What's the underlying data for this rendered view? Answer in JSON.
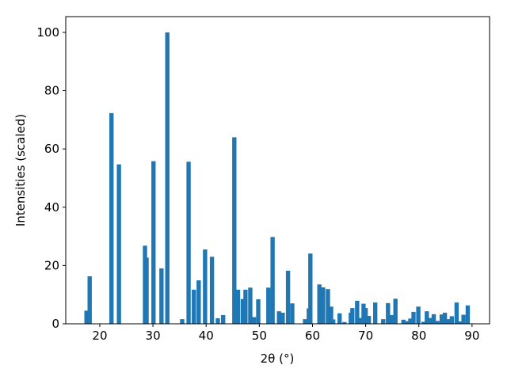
{
  "chart_data": {
    "type": "bar",
    "xlabel": "2θ (°)",
    "ylabel": "Intensities (scaled)",
    "color": "#1f77b4",
    "x": [
      17.5,
      18.1,
      22.2,
      23.6,
      28.5,
      28.8,
      30.1,
      31.6,
      32.7,
      35.5,
      36.7,
      37.7,
      38.6,
      39.8,
      41.1,
      42.2,
      43.2,
      45.3,
      46.0,
      46.9,
      47.4,
      48.3,
      49.0,
      49.8,
      51.7,
      52.5,
      53.7,
      54.4,
      55.4,
      56.2,
      58.6,
      59.3,
      59.6,
      61.3,
      62.0,
      62.9,
      63.5,
      63.9,
      65.1,
      66.0,
      67.2,
      67.5,
      68.4,
      69.0,
      69.6,
      70.0,
      70.6,
      71.8,
      73.3,
      74.2,
      74.8,
      75.6,
      77.1,
      77.8,
      78.4,
      79.0,
      79.9,
      80.9,
      81.5,
      82.1,
      82.8,
      83.5,
      84.3,
      84.9,
      85.5,
      86.2,
      87.1,
      87.8,
      88.4,
      89.2
    ],
    "values": [
      4.5,
      16.3,
      72.3,
      54.7,
      26.8,
      22.7,
      55.8,
      19,
      100,
      1.6,
      55.6,
      11.7,
      14.9,
      25.5,
      23,
      1.9,
      3,
      64,
      11.7,
      8.5,
      11.7,
      12.4,
      2.3,
      8.4,
      12.4,
      29.8,
      4.3,
      3.8,
      18.2,
      7,
      1.6,
      5.3,
      24.1,
      13.5,
      12.5,
      11.9,
      5.9,
      1.5,
      3.6,
      0.6,
      3.8,
      5.4,
      7.9,
      2,
      6.9,
      5.4,
      2.7,
      7.3,
      1.6,
      7.1,
      3,
      8.6,
      1.4,
      0.9,
      1.8,
      4.1,
      5.9,
      0.7,
      4.3,
      2,
      3.3,
      1,
      3.2,
      3.8,
      1.6,
      2.6,
      7.3,
      0.8,
      3.1,
      6.3
    ],
    "xlim": [
      13.6,
      93.3
    ],
    "ylim": [
      0,
      105.4
    ],
    "xticks": [
      20,
      30,
      40,
      50,
      60,
      70,
      80,
      90
    ],
    "yticks": [
      0,
      20,
      40,
      60,
      80,
      100
    ]
  }
}
